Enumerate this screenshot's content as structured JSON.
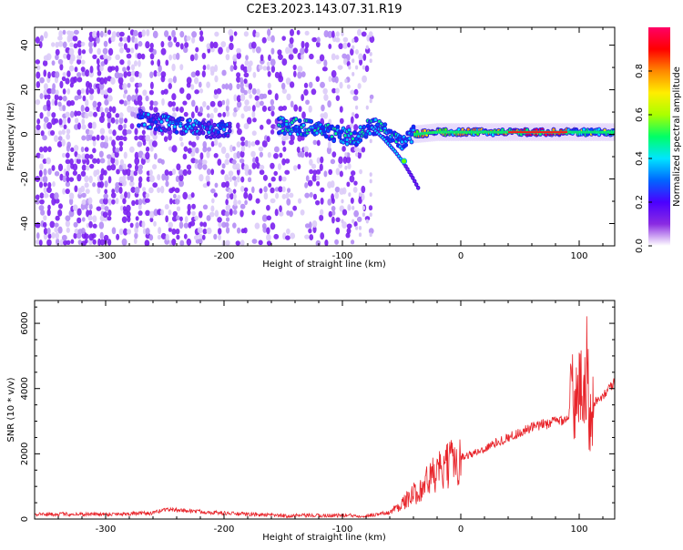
{
  "title": "C2E3.2023.143.07.31.R19",
  "colors": {
    "snr_line": "#e8242a",
    "spectrogram_low": "#d9c8f7",
    "spectrogram_mid": "#7a1ef0",
    "spectrogram_high": "#ff0044",
    "axis": "#000000"
  },
  "colorbar": {
    "label": "Normalized spectral amplitude",
    "ticks": [
      "0.0",
      "0.2",
      "0.4",
      "0.6",
      "0.8"
    ],
    "tick_values": [
      0.0,
      0.2,
      0.4,
      0.6,
      0.8
    ],
    "range": [
      0,
      1
    ],
    "colormap": [
      "#ffffff",
      "#8a2be2",
      "#4b00ff",
      "#0066ff",
      "#00e5ff",
      "#00ff66",
      "#aaff00",
      "#ffee00",
      "#ff8800",
      "#ff0000",
      "#ff0066"
    ]
  },
  "chart_data": [
    {
      "type": "heatmap",
      "xlabel": "Height of straight line (km)",
      "ylabel": "Frequency (Hz)",
      "xlim": [
        -360,
        130
      ],
      "ylim": [
        -50,
        48
      ],
      "x_ticks": [
        -300,
        -200,
        -100,
        0,
        100
      ],
      "y_ticks": [
        -40,
        -20,
        0,
        20,
        40
      ],
      "trace": {
        "x": [
          -270,
          -250,
          -230,
          -210,
          -150,
          -130,
          -110,
          -90,
          -75,
          -60,
          -50,
          -40,
          -20,
          0,
          20,
          40,
          60,
          80,
          100,
          120,
          130
        ],
        "freq": [
          7,
          5,
          3,
          2,
          4,
          3,
          1,
          -2,
          4,
          0,
          -3,
          0,
          1,
          1,
          1,
          1,
          1,
          1,
          1,
          1,
          1
        ]
      },
      "branch": {
        "x": [
          -75,
          -65,
          -55,
          -48,
          -40,
          -35
        ],
        "freq": [
          3,
          -2,
          -8,
          -13,
          -20,
          -25
        ]
      }
    },
    {
      "type": "line",
      "xlabel": "Height of straight line (km)",
      "ylabel": "SNR (10 * v/v)",
      "xlim": [
        -360,
        130
      ],
      "ylim": [
        0,
        6700
      ],
      "x_ticks": [
        -300,
        -200,
        -100,
        0,
        100
      ],
      "y_ticks": [
        0,
        2000,
        4000,
        6000
      ],
      "series": [
        {
          "x": [
            -360,
            -300,
            -260,
            -250,
            -200,
            -150,
            -100,
            -80,
            -60,
            -45,
            -35,
            -25,
            -15,
            -5,
            0,
            10,
            20,
            30,
            40,
            50,
            60,
            70,
            80,
            90,
            95,
            100,
            105,
            110,
            120,
            130
          ],
          "y": [
            150,
            150,
            180,
            300,
            180,
            100,
            110,
            100,
            200,
            600,
            900,
            1300,
            1500,
            1800,
            1900,
            2000,
            2150,
            2350,
            2500,
            2650,
            2800,
            2900,
            3000,
            3100,
            3600,
            4600,
            3800,
            3500,
            3800,
            4200
          ]
        }
      ]
    }
  ]
}
